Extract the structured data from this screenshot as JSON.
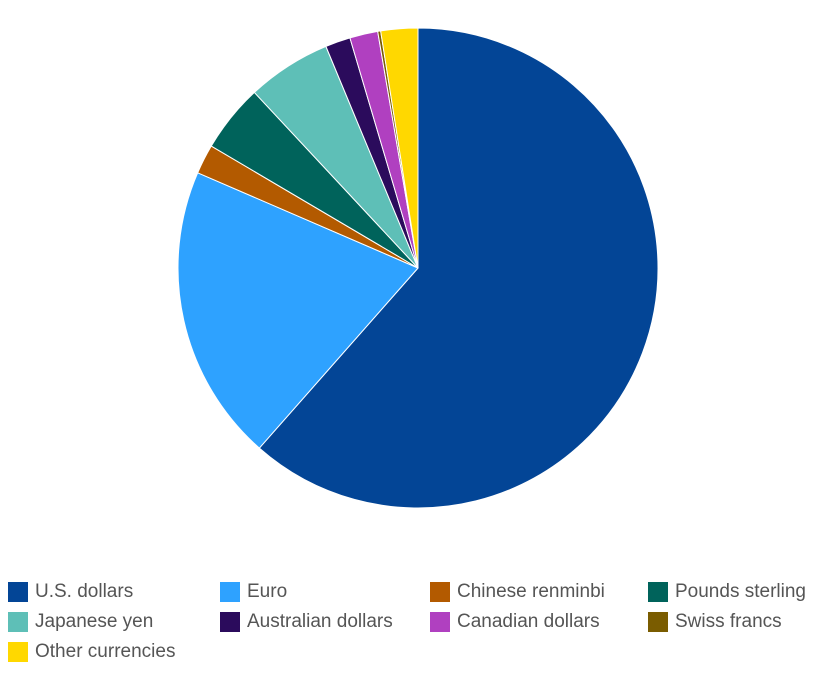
{
  "chart_data": {
    "type": "pie",
    "categories": [
      "U.S. dollars",
      "Euro",
      "Chinese renminbi",
      "Pounds sterling",
      "Japanese yen",
      "Australian dollars",
      "Canadian dollars",
      "Swiss francs",
      "Other currencies"
    ],
    "values": [
      61.8,
      20.1,
      2.0,
      4.6,
      5.7,
      1.7,
      1.9,
      0.2,
      2.5
    ],
    "colors": [
      "#034596",
      "#2ea2ff",
      "#b35a00",
      "#00635b",
      "#5ebfb7",
      "#2b0b5c",
      "#b040c0",
      "#7a5c00",
      "#ffd800"
    ],
    "start_angle": 0,
    "direction": "clockwise",
    "legend": "bottom"
  }
}
